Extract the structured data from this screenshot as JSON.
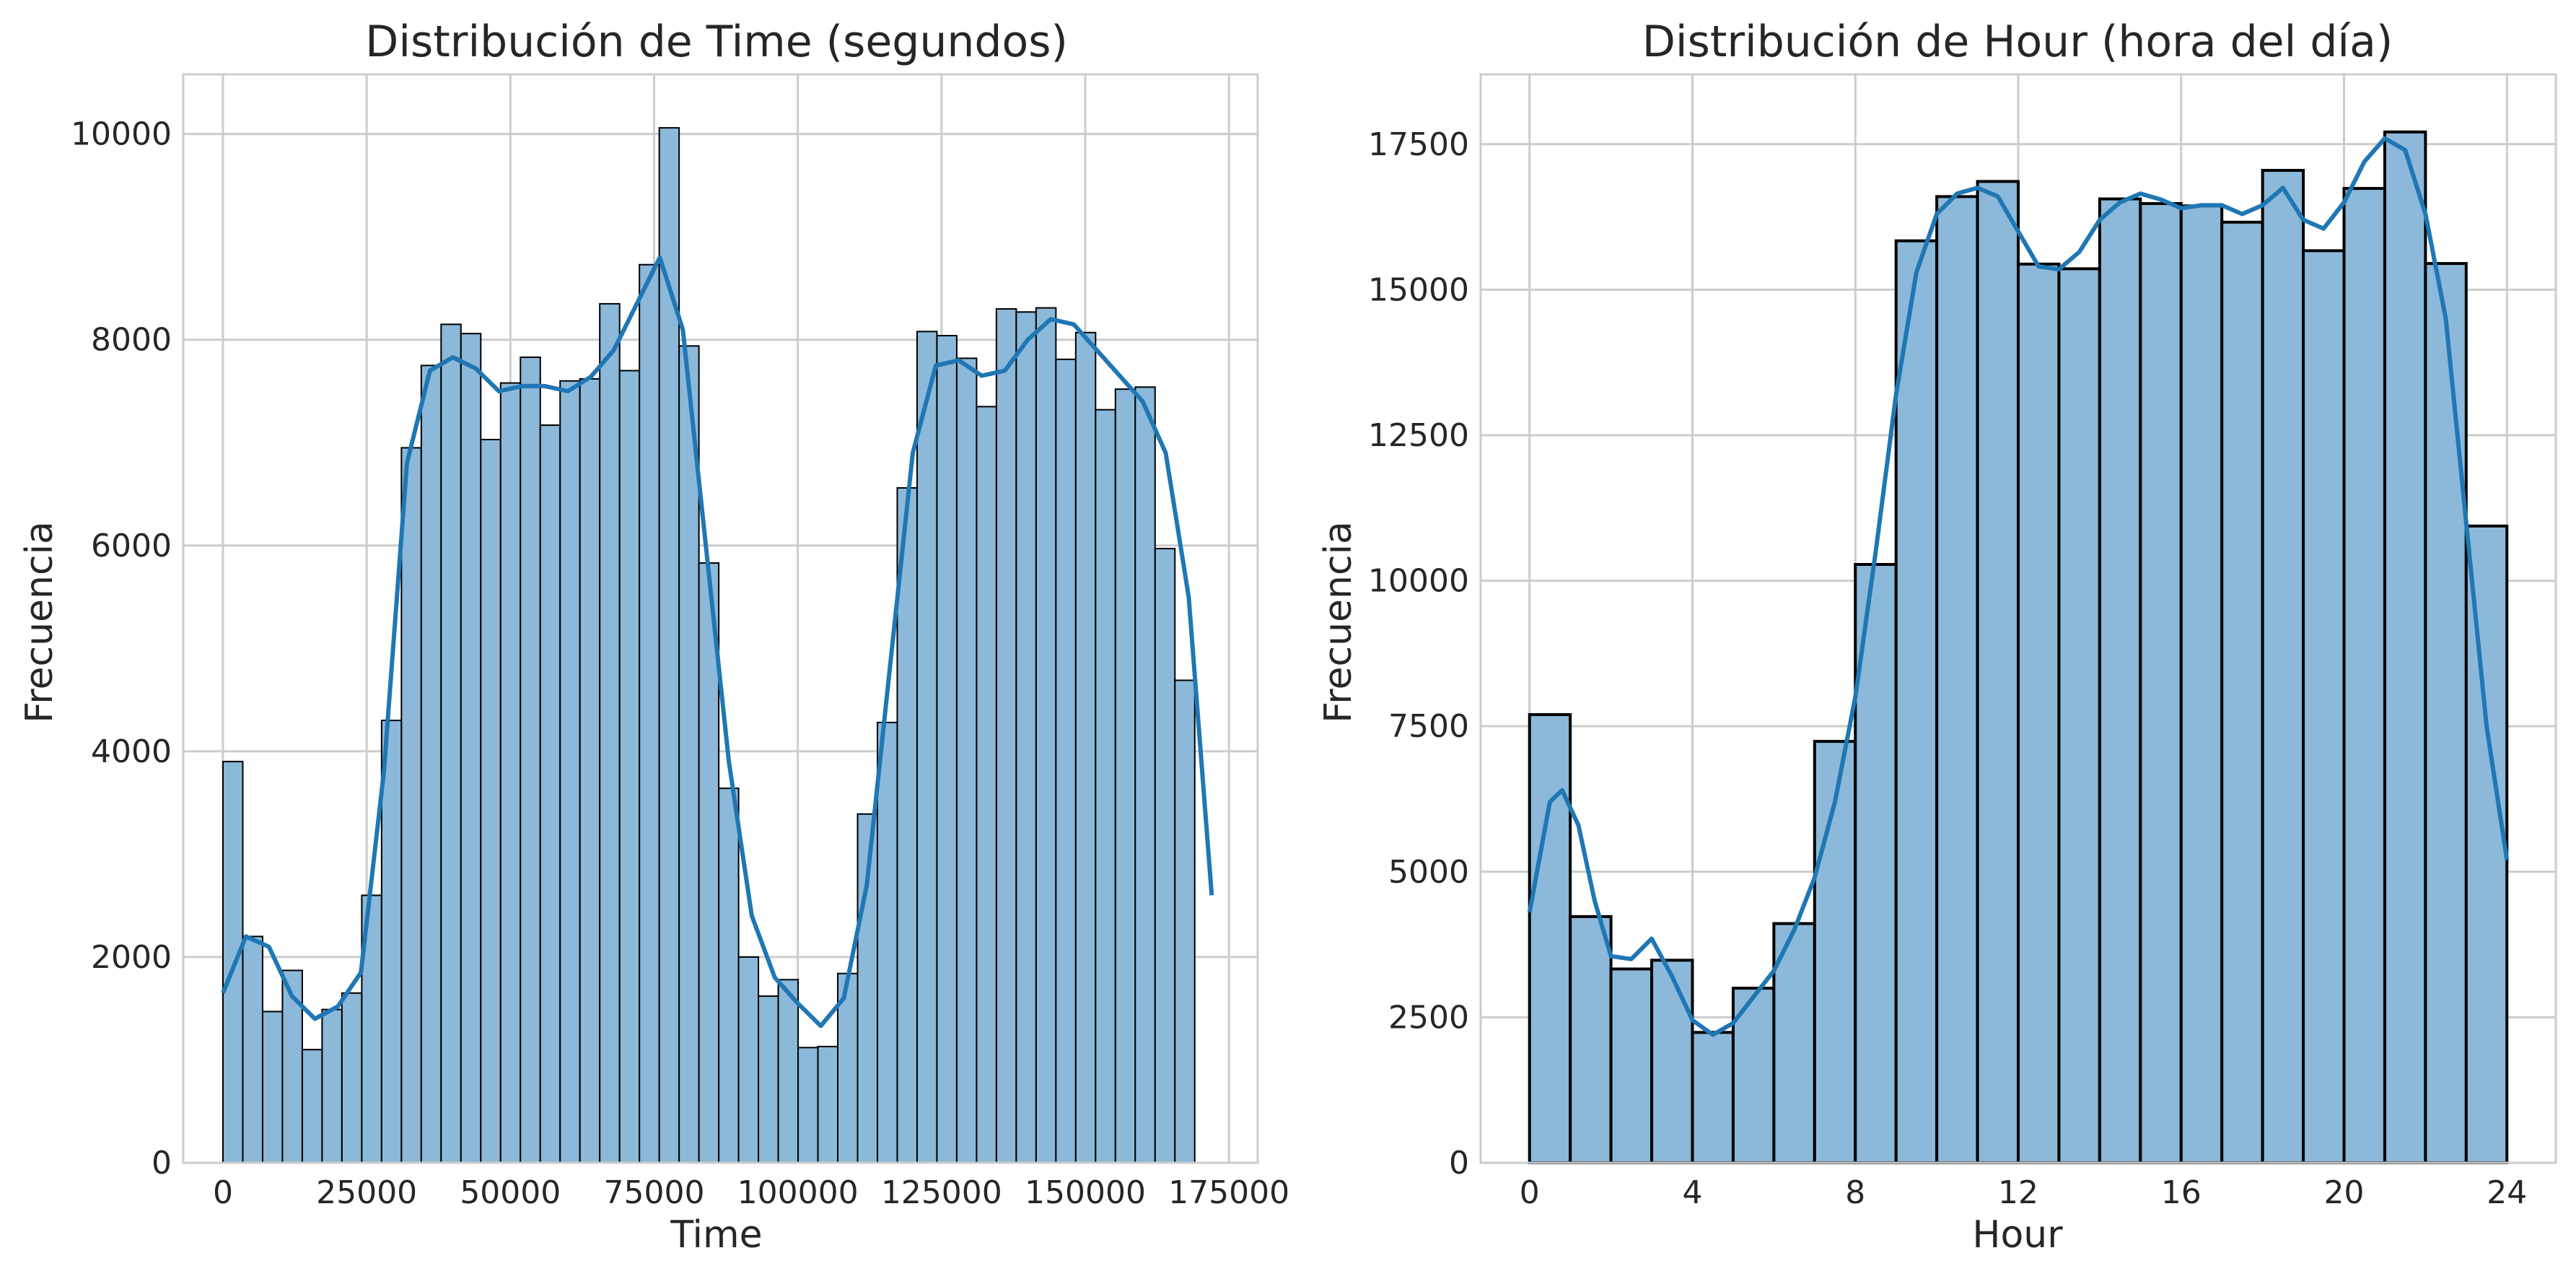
{
  "colors": {
    "bar_fill": "#8cb8d9",
    "kde_line": "#1f77b4",
    "bar_edge": "#000000",
    "grid": "#cccccc"
  },
  "chart_data": [
    {
      "type": "bar",
      "title": "Distribución de Time (segundos)",
      "xlabel": "Time",
      "ylabel": "Frecuencia",
      "xlim": [
        -6900,
        180000
      ],
      "ylim": [
        0,
        10580
      ],
      "xticks": [
        0,
        25000,
        50000,
        75000,
        100000,
        125000,
        150000,
        175000
      ],
      "xtick_labels": [
        "0",
        "25000",
        "50000",
        "75000",
        "100000",
        "125000",
        "150000",
        "175000"
      ],
      "yticks": [
        0,
        2000,
        4000,
        6000,
        8000,
        10000
      ],
      "ytick_labels": [
        "0",
        "2000",
        "4000",
        "6000",
        "8000",
        "10000"
      ],
      "bin_start": 0,
      "bin_width": 3450,
      "values": [
        3900,
        2200,
        1470,
        1870,
        1100,
        1490,
        1650,
        2600,
        4300,
        6950,
        7750,
        8150,
        8060,
        7030,
        7580,
        7830,
        7170,
        7600,
        7620,
        8350,
        7700,
        8730,
        10060,
        7940,
        5830,
        3640,
        2000,
        1620,
        1780,
        1120,
        1130,
        1840,
        3390,
        4280,
        6560,
        8080,
        8040,
        7820,
        7350,
        8300,
        8270,
        8310,
        7810,
        8070,
        7320,
        7520,
        7540,
        5970,
        4690
      ],
      "kde": {
        "x": [
          0,
          4000,
          8000,
          12000,
          16000,
          20000,
          24000,
          28000,
          32000,
          36000,
          40000,
          44000,
          48000,
          52000,
          56000,
          60000,
          64000,
          68000,
          72000,
          76000,
          80000,
          84000,
          88000,
          92000,
          96000,
          100000,
          104000,
          108000,
          112000,
          116000,
          120000,
          124000,
          128000,
          132000,
          136000,
          140000,
          144000,
          148000,
          152000,
          156000,
          160000,
          164000,
          168000,
          172000
        ],
        "y": [
          1650,
          2200,
          2100,
          1620,
          1400,
          1520,
          1850,
          3800,
          6800,
          7700,
          7830,
          7720,
          7500,
          7550,
          7550,
          7500,
          7640,
          7900,
          8350,
          8800,
          8100,
          6000,
          3900,
          2400,
          1800,
          1550,
          1330,
          1600,
          2700,
          4800,
          6900,
          7750,
          7800,
          7650,
          7700,
          8000,
          8200,
          8150,
          7900,
          7650,
          7400,
          6900,
          5500,
          2600
        ]
      }
    },
    {
      "type": "bar",
      "title": "Distribución de Hour (hora del día)",
      "xlabel": "Hour",
      "ylabel": "Frecuencia",
      "xlim": [
        -1.2,
        25.2
      ],
      "ylim": [
        0,
        18700
      ],
      "xticks": [
        0,
        4,
        8,
        12,
        16,
        20,
        24
      ],
      "xtick_labels": [
        "0",
        "4",
        "8",
        "12",
        "16",
        "20",
        "24"
      ],
      "yticks": [
        0,
        2500,
        5000,
        7500,
        10000,
        12500,
        15000,
        17500
      ],
      "ytick_labels": [
        "0",
        "2500",
        "5000",
        "7500",
        "10000",
        "12500",
        "15000",
        "17500"
      ],
      "bin_start": 0,
      "bin_width": 1,
      "values": [
        7700,
        4230,
        3330,
        3480,
        2240,
        3000,
        4110,
        7240,
        10280,
        15840,
        16600,
        16860,
        15440,
        15360,
        16560,
        16480,
        16440,
        16160,
        17050,
        15670,
        16740,
        17710,
        15450,
        10940
      ],
      "kde": {
        "x": [
          0,
          0.5,
          0.8,
          1.2,
          1.6,
          2.0,
          2.5,
          3.0,
          3.5,
          4.0,
          4.5,
          5.0,
          5.5,
          6.0,
          6.5,
          7.0,
          7.5,
          8.0,
          8.5,
          9.0,
          9.5,
          10.0,
          10.5,
          11.0,
          11.5,
          12.0,
          12.5,
          13.0,
          13.5,
          14.0,
          14.5,
          15.0,
          15.5,
          16.0,
          16.5,
          17.0,
          17.5,
          18.0,
          18.5,
          19.0,
          19.5,
          20.0,
          20.5,
          21.0,
          21.5,
          22.0,
          22.5,
          23.0,
          23.5,
          24.0
        ],
        "y": [
          4300,
          6200,
          6400,
          5800,
          4500,
          3550,
          3500,
          3850,
          3200,
          2450,
          2200,
          2400,
          2850,
          3300,
          4000,
          4900,
          6200,
          8000,
          10500,
          13200,
          15300,
          16300,
          16650,
          16750,
          16600,
          16000,
          15400,
          15350,
          15650,
          16200,
          16500,
          16650,
          16550,
          16400,
          16450,
          16450,
          16300,
          16450,
          16750,
          16200,
          16050,
          16500,
          17200,
          17600,
          17400,
          16300,
          14500,
          11000,
          7500,
          5200
        ]
      }
    }
  ]
}
